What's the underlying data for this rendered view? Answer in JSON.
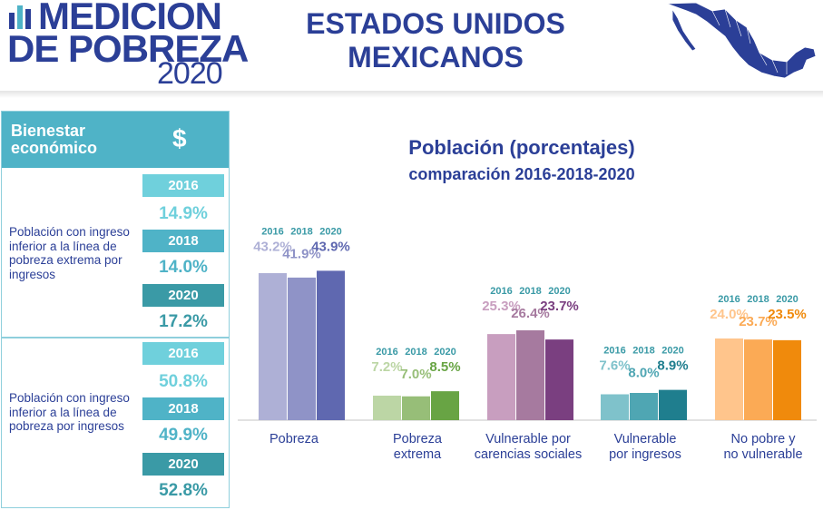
{
  "header": {
    "logo_line1": "MEDICION",
    "logo_line2": "DE POBREZA",
    "logo_line3": "2020",
    "country_line1": "ESTADOS UNIDOS",
    "country_line2": "MEXICANOS"
  },
  "panel": {
    "title_line1": "Bienestar",
    "title_line2": "económico",
    "icon": "dollar-icon",
    "icon_glyph": "$",
    "indicators": [
      {
        "label": "Población con ingreso inferior a la línea de pobreza extrema por ingresos",
        "years": [
          {
            "year": "2016",
            "value": "14.9%"
          },
          {
            "year": "2018",
            "value": "14.0%"
          },
          {
            "year": "2020",
            "value": "17.2%"
          }
        ]
      },
      {
        "label": "Población con ingreso inferior a la línea de pobreza por ingresos",
        "years": [
          {
            "year": "2016",
            "value": "50.8%"
          },
          {
            "year": "2018",
            "value": "49.9%"
          },
          {
            "year": "2020",
            "value": "52.8%"
          }
        ]
      }
    ]
  },
  "colors": {
    "brand_blue": "#2b3f97",
    "teal": "#4fb3c7",
    "year_2016": "#6fd0dc",
    "year_2018": "#4fb3c7",
    "year_2020": "#3a9aa6",
    "value_2016": "#6fd0dc",
    "value_2018": "#4fb3c7",
    "value_2020": "#3a9aa6"
  },
  "chart_data": {
    "type": "bar",
    "title": "Población (porcentajes)",
    "subtitle": "comparación 2016-2018-2020",
    "years": [
      "2016",
      "2018",
      "2020"
    ],
    "ylim": [
      0,
      50
    ],
    "grid": false,
    "groups": [
      {
        "category": "Pobreza",
        "values": [
          43.2,
          41.9,
          43.9
        ],
        "labels": [
          "43.2%",
          "41.9%",
          "43.9%"
        ],
        "colors": [
          "#aeb0d6",
          "#8f93c7",
          "#5f68b0"
        ]
      },
      {
        "category": "Pobreza extrema",
        "values": [
          7.2,
          7.0,
          8.5
        ],
        "labels": [
          "7.2%",
          "7.0%",
          "8.5%"
        ],
        "colors": [
          "#bcd6a5",
          "#97be78",
          "#68a444"
        ]
      },
      {
        "category": "Vulnerable por carencias sociales",
        "values": [
          25.3,
          26.4,
          23.7
        ],
        "labels": [
          "25.3%",
          "26.4%",
          "23.7%"
        ],
        "colors": [
          "#c89ebf",
          "#a67a9f",
          "#7a3f80"
        ]
      },
      {
        "category": "Vulnerable por ingresos",
        "values": [
          7.6,
          8.0,
          8.9
        ],
        "labels": [
          "7.6%",
          "8.0%",
          "8.9%"
        ],
        "colors": [
          "#7fc2cb",
          "#4fa6b3",
          "#1f7e8e"
        ]
      },
      {
        "category": "No pobre y no vulnerable",
        "values": [
          24.0,
          23.7,
          23.5
        ],
        "labels": [
          "24.0%",
          "23.7%",
          "23.5%"
        ],
        "colors": [
          "#ffc58c",
          "#fbaa55",
          "#f08a0c"
        ]
      }
    ]
  }
}
